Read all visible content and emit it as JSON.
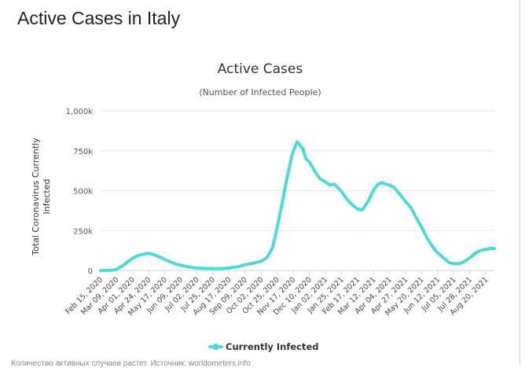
{
  "page": {
    "heading": "Active Cases in Italy",
    "footer": "Количество активных случаев растет. Источник: worldometers.info"
  },
  "chart_data": {
    "type": "line",
    "title": "Active Cases",
    "subtitle": "(Number of Infected People)",
    "ylabel_lines": [
      "Total Coronavirus Currently",
      "Infected"
    ],
    "ylim": [
      0,
      1000000
    ],
    "yticks": [
      {
        "value": 0,
        "label": "0"
      },
      {
        "value": 250000,
        "label": "250k"
      },
      {
        "value": 500000,
        "label": "500k"
      },
      {
        "value": 750000,
        "label": "750k"
      },
      {
        "value": 1000000,
        "label": "1,000k"
      }
    ],
    "xticks": [
      "Feb 15, 2020",
      "Mar 09, 2020",
      "Apr 01, 2020",
      "Apr 24, 2020",
      "May 17, 2020",
      "Jun 09, 2020",
      "Jul 02, 2020",
      "Jul 25, 2020",
      "Aug 17, 2020",
      "Sep 09, 2020",
      "Oct 02, 2020",
      "Oct 25, 2020",
      "Nov 17, 2020",
      "Dec 10, 2020",
      "Jan 02, 2021",
      "Jan 25, 2021",
      "Feb 17, 2021",
      "Mar 12, 2021",
      "Apr 04, 2021",
      "Apr 27, 2021",
      "May 20, 2021",
      "Jun 12, 2021",
      "Jul 05, 2021",
      "Jul 28, 2021",
      "Aug 20, 2021"
    ],
    "grid": true,
    "legend_position": "bottom-center",
    "series": [
      {
        "name": "Currently Infected",
        "color": "#4dd9d5",
        "points": [
          [
            "2020-02-15",
            0
          ],
          [
            "2020-03-01",
            1000
          ],
          [
            "2020-03-09",
            7000
          ],
          [
            "2020-03-20",
            37000
          ],
          [
            "2020-04-01",
            78000
          ],
          [
            "2020-04-10",
            96000
          ],
          [
            "2020-04-20",
            106000
          ],
          [
            "2020-04-24",
            107000
          ],
          [
            "2020-05-01",
            100000
          ],
          [
            "2020-05-10",
            84000
          ],
          [
            "2020-05-17",
            68000
          ],
          [
            "2020-06-01",
            42000
          ],
          [
            "2020-06-09",
            32000
          ],
          [
            "2020-06-20",
            22000
          ],
          [
            "2020-07-02",
            15000
          ],
          [
            "2020-07-15",
            13000
          ],
          [
            "2020-07-25",
            12000
          ],
          [
            "2020-08-05",
            12500
          ],
          [
            "2020-08-17",
            15000
          ],
          [
            "2020-09-01",
            26000
          ],
          [
            "2020-09-09",
            36000
          ],
          [
            "2020-09-20",
            45000
          ],
          [
            "2020-10-02",
            58000
          ],
          [
            "2020-10-10",
            80000
          ],
          [
            "2020-10-18",
            140000
          ],
          [
            "2020-10-25",
            270000
          ],
          [
            "2020-11-01",
            420000
          ],
          [
            "2020-11-08",
            580000
          ],
          [
            "2020-11-15",
            720000
          ],
          [
            "2020-11-22",
            805000
          ],
          [
            "2020-11-25",
            795000
          ],
          [
            "2020-12-01",
            760000
          ],
          [
            "2020-12-05",
            700000
          ],
          [
            "2020-12-10",
            680000
          ],
          [
            "2020-12-18",
            620000
          ],
          [
            "2020-12-25",
            575000
          ],
          [
            "2021-01-02",
            555000
          ],
          [
            "2021-01-08",
            535000
          ],
          [
            "2021-01-15",
            540000
          ],
          [
            "2021-01-25",
            495000
          ],
          [
            "2021-02-03",
            440000
          ],
          [
            "2021-02-10",
            410000
          ],
          [
            "2021-02-17",
            385000
          ],
          [
            "2021-02-24",
            380000
          ],
          [
            "2021-03-05",
            440000
          ],
          [
            "2021-03-12",
            505000
          ],
          [
            "2021-03-18",
            540000
          ],
          [
            "2021-03-24",
            550000
          ],
          [
            "2021-03-30",
            540000
          ],
          [
            "2021-04-04",
            535000
          ],
          [
            "2021-04-10",
            520000
          ],
          [
            "2021-04-20",
            470000
          ],
          [
            "2021-04-27",
            430000
          ],
          [
            "2021-05-05",
            390000
          ],
          [
            "2021-05-12",
            330000
          ],
          [
            "2021-05-20",
            270000
          ],
          [
            "2021-05-28",
            200000
          ],
          [
            "2021-06-05",
            145000
          ],
          [
            "2021-06-12",
            110000
          ],
          [
            "2021-06-20",
            80000
          ],
          [
            "2021-06-28",
            50000
          ],
          [
            "2021-07-05",
            43000
          ],
          [
            "2021-07-12",
            42000
          ],
          [
            "2021-07-20",
            55000
          ],
          [
            "2021-07-28",
            80000
          ],
          [
            "2021-08-05",
            110000
          ],
          [
            "2021-08-12",
            125000
          ],
          [
            "2021-08-20",
            132000
          ],
          [
            "2021-08-27",
            138000
          ],
          [
            "2021-09-01",
            137000
          ]
        ]
      }
    ]
  }
}
